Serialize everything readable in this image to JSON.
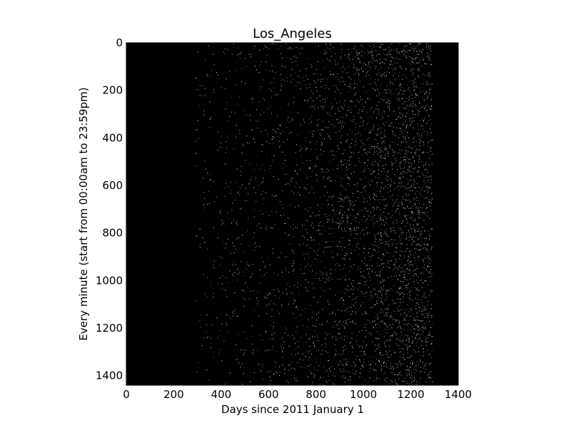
{
  "chart_data": {
    "type": "heatmap",
    "title": "Los_Angeles",
    "xlabel": "Days since 2011 January 1",
    "ylabel": "Every minute (start from 00:00am to 23:59pm)",
    "xlim": [
      0,
      1400
    ],
    "ylim": [
      1440,
      0
    ],
    "xticks": [
      0,
      200,
      400,
      600,
      800,
      1000,
      1200,
      1400
    ],
    "yticks": [
      0,
      200,
      400,
      600,
      800,
      1000,
      1200,
      1400
    ],
    "xtick_labels": [
      "0",
      "200",
      "400",
      "600",
      "800",
      "1000",
      "1200",
      "1400"
    ],
    "ytick_labels": [
      "0",
      "200",
      "400",
      "600",
      "800",
      "1000",
      "1200",
      "1400"
    ],
    "colormap": "gray",
    "background_color": "#000000",
    "grid": false,
    "data_extent_days": [
      0,
      1290
    ],
    "density_profile": [
      {
        "day_start": 0,
        "day_end": 290,
        "brightness": 0.0
      },
      {
        "day_start": 290,
        "day_end": 450,
        "brightness": 0.04
      },
      {
        "day_start": 450,
        "day_end": 600,
        "brightness": 0.06
      },
      {
        "day_start": 600,
        "day_end": 750,
        "brightness": 0.08
      },
      {
        "day_start": 750,
        "day_end": 900,
        "brightness": 0.12
      },
      {
        "day_start": 900,
        "day_end": 1050,
        "brightness": 0.18
      },
      {
        "day_start": 1050,
        "day_end": 1150,
        "brightness": 0.24
      },
      {
        "day_start": 1150,
        "day_end": 1290,
        "brightness": 0.3
      },
      {
        "day_start": 1290,
        "day_end": 1400,
        "brightness": 0.0
      }
    ]
  }
}
